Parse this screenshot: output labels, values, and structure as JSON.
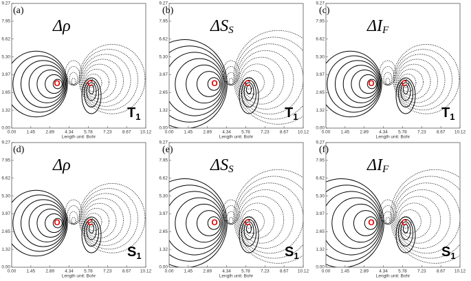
{
  "panels": [
    {
      "label": "(a)",
      "title": "Δρ",
      "state": "T",
      "state_sub": "1",
      "atoms": [
        "O",
        "C"
      ]
    },
    {
      "label": "(b)",
      "title": "ΔS",
      "title_sub": "S",
      "state": "T",
      "state_sub": "1",
      "atoms": [
        "O",
        "C"
      ]
    },
    {
      "label": "(c)",
      "title": "ΔI",
      "title_sub": "F",
      "state": "T",
      "state_sub": "1",
      "atoms": [
        "O",
        "C"
      ]
    },
    {
      "label": "(d)",
      "title": "Δρ",
      "state": "S",
      "state_sub": "1",
      "atoms": [
        "O",
        "C"
      ]
    },
    {
      "label": "(e)",
      "title": "ΔS",
      "title_sub": "S",
      "state": "S",
      "state_sub": "1",
      "atoms": [
        "O",
        "C"
      ]
    },
    {
      "label": "(f)",
      "title": "ΔI",
      "title_sub": "F",
      "state": "S",
      "state_sub": "1",
      "atoms": [
        "O",
        "C"
      ]
    }
  ],
  "x_ticks": [
    "0.00",
    "1.45",
    "2.89",
    "4.34",
    "5.78",
    "7.23",
    "8.67",
    "10.12"
  ],
  "y_ticks": [
    "9.27",
    "7.95",
    "6.62",
    "5.30",
    "3.97",
    "2.65",
    "1.32",
    "0.00"
  ],
  "x_axis_label": "Length unit: Bohr"
}
